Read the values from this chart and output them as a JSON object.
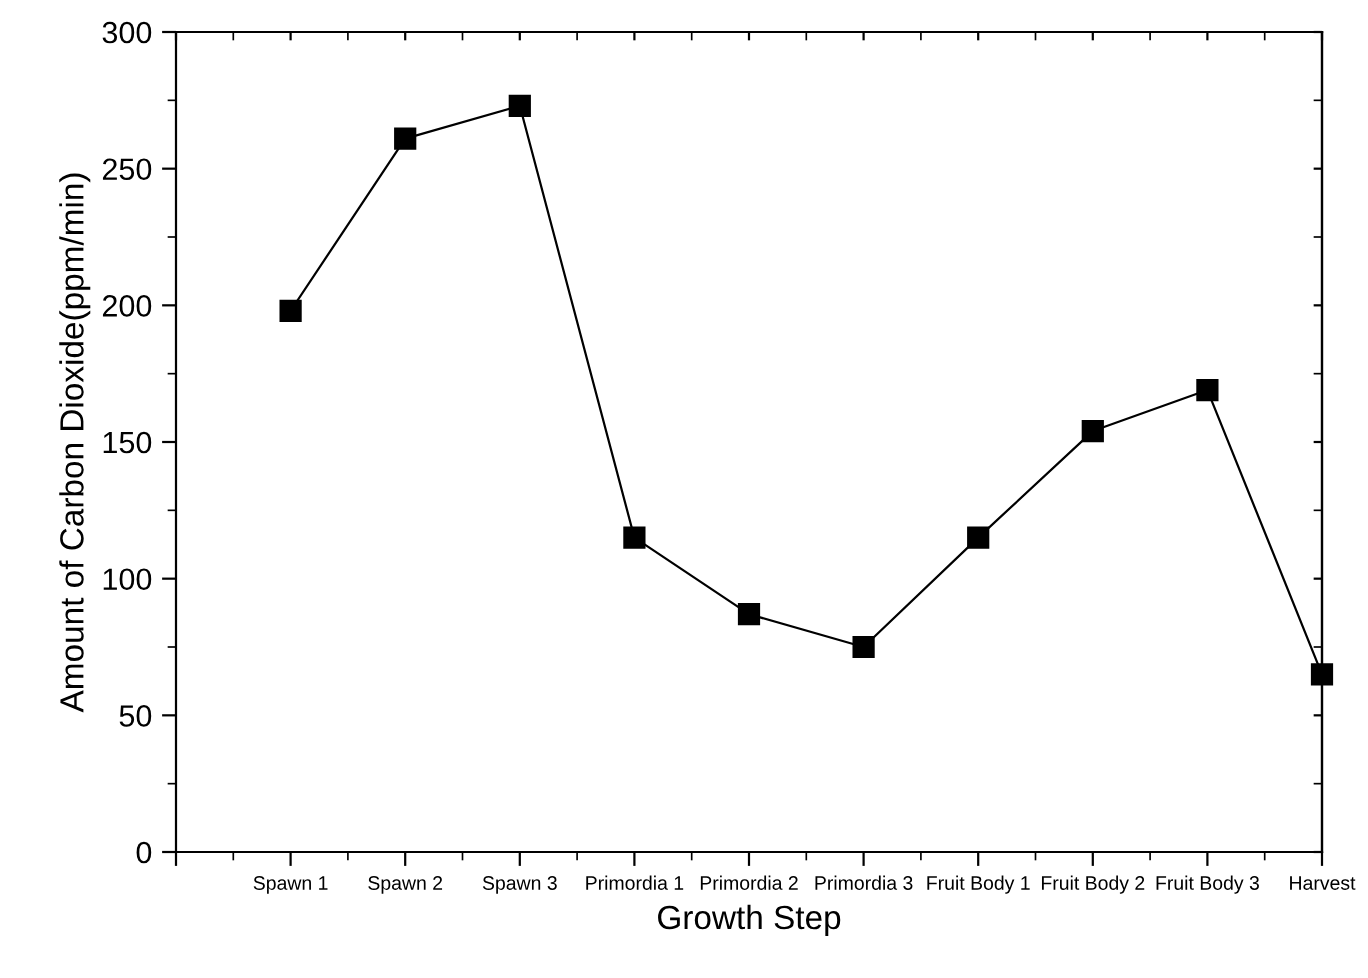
{
  "chart_data": {
    "type": "line",
    "xlabel": "Growth Step",
    "ylabel": "Amount of Carbon Dioxide(ppm/min)",
    "categories": [
      null,
      "Spawn 1",
      "Spawn 2",
      "Spawn 3",
      "Primordia 1",
      "Primordia 2",
      "Primordia 3",
      "Fruit Body 1",
      "Fruit Body 2",
      "Fruit Body 3",
      "Harvest"
    ],
    "series": [
      {
        "color": "#000000",
        "values": [
          null,
          198,
          261,
          273,
          115,
          87,
          75,
          115,
          154,
          169,
          65
        ]
      }
    ],
    "ylim": [
      0,
      300
    ],
    "yticks": [
      0,
      50,
      100,
      150,
      200,
      250,
      300
    ],
    "marker": "square",
    "line_style": "solid",
    "grid": false,
    "legend": false
  }
}
